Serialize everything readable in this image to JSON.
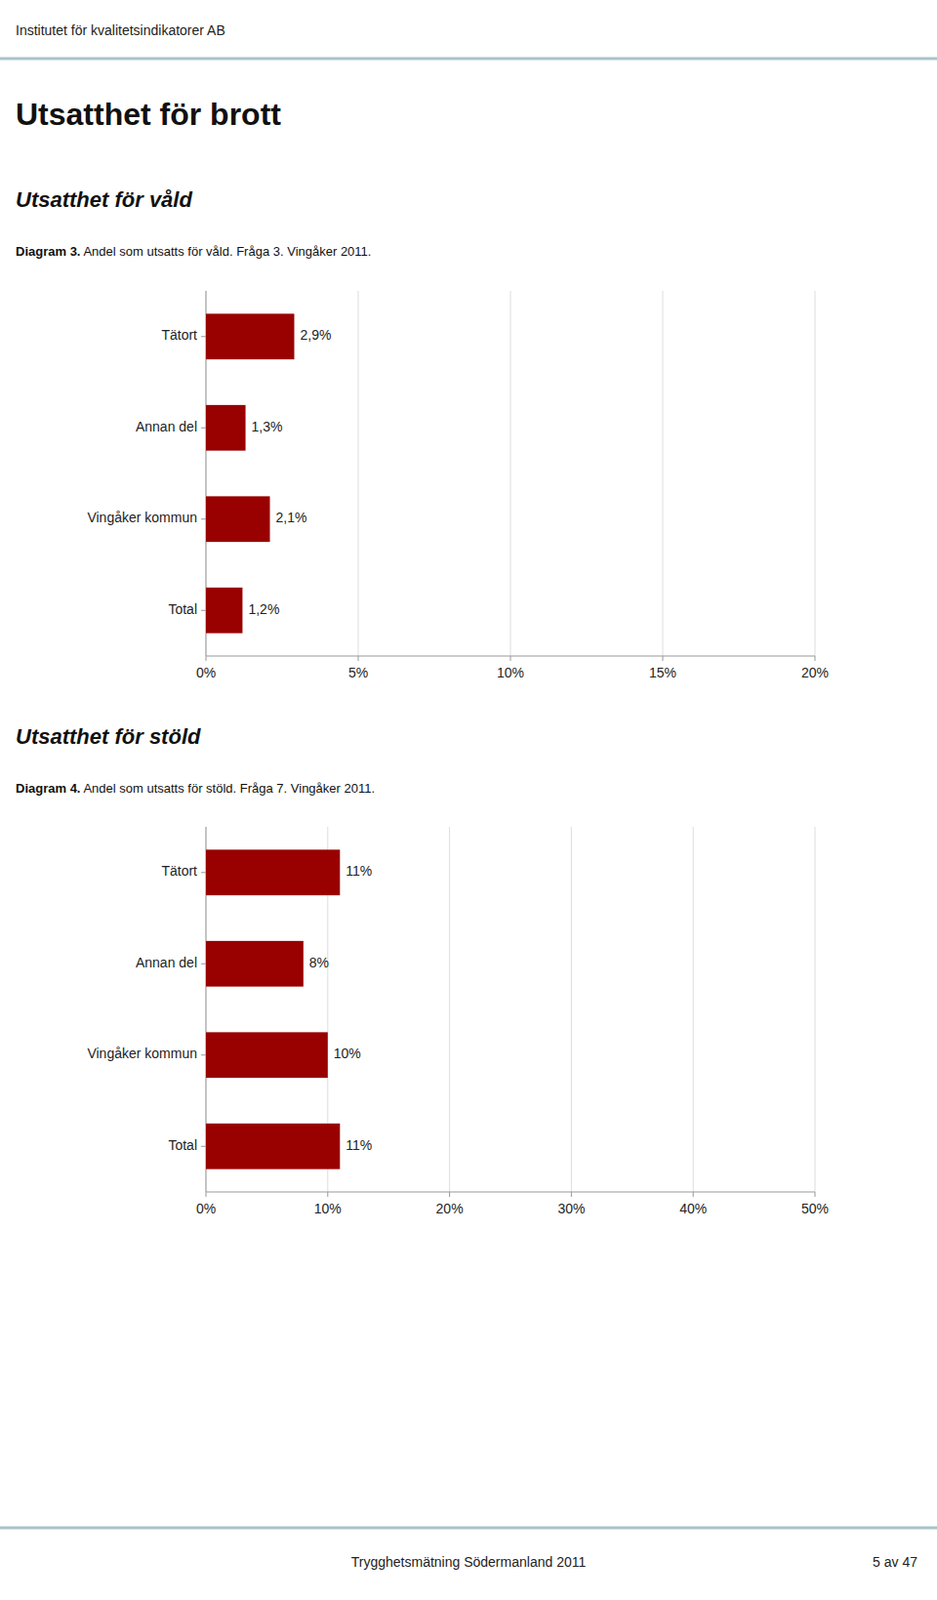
{
  "header": "Institutet för kvalitetsindikatorer AB",
  "title": "Utsatthet för brott",
  "footer": "Trygghetsmätning Södermanland 2011",
  "footer_right": "5 av 47",
  "chart_data": [
    {
      "type": "bar",
      "orientation": "horizontal",
      "title": "Utsatthet för våld",
      "subtitle": [
        "Diagram 3.",
        "Andel som utsatts för våld. Fråga 3. Vingåker 2011."
      ],
      "categories": [
        "Tätort",
        "Annan del",
        "Vingåker kommun",
        "Total"
      ],
      "values": [
        2.9,
        1.3,
        2.1,
        1.2
      ],
      "value_labels": [
        "2,9%",
        "1,3%",
        "2,1%",
        "1,2%"
      ],
      "data_labels": true,
      "color": "#990000",
      "xlim": [
        0,
        20
      ],
      "xticks": [
        {
          "value": 0,
          "label": "0%"
        },
        {
          "value": 5,
          "label": "5%"
        },
        {
          "value": 10,
          "label": "10%"
        },
        {
          "value": 15,
          "label": "15%"
        },
        {
          "value": 20,
          "label": "20%"
        }
      ],
      "grid": true
    },
    {
      "type": "bar",
      "orientation": "horizontal",
      "title": "Utsatthet för stöld",
      "subtitle": [
        "Diagram 4.",
        "Andel som utsatts för stöld. Fråga 7. Vingåker 2011."
      ],
      "categories": [
        "Tätort",
        "Annan del",
        "Vingåker kommun",
        "Total"
      ],
      "values": [
        11,
        8,
        10,
        11
      ],
      "value_labels": [
        "11%",
        "8%",
        "10%",
        "11%"
      ],
      "data_labels": true,
      "color": "#990000",
      "xlim": [
        0,
        50
      ],
      "xticks": [
        {
          "value": 0,
          "label": "0%"
        },
        {
          "value": 10,
          "label": "10%"
        },
        {
          "value": 20,
          "label": "20%"
        },
        {
          "value": 30,
          "label": "30%"
        },
        {
          "value": 40,
          "label": "40%"
        },
        {
          "value": 50,
          "label": "50%"
        }
      ],
      "grid": true
    }
  ]
}
